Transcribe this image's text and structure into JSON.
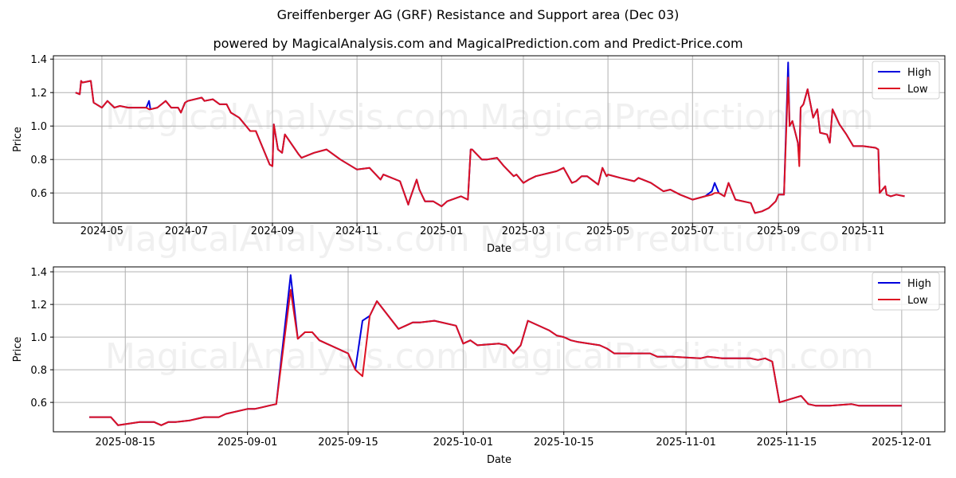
{
  "header": {
    "title": "Greiffenberger AG (GRF) Resistance and Support area (Dec 03)",
    "subtitle": "powered by MagicalAnalysis.com and MagicalPrediction.com and Predict-Price.com"
  },
  "watermarks": [
    "MagicalAnalysis.com",
    "MagicalPrediction.com"
  ],
  "colors": {
    "high": "#0000dd",
    "low": "#dd1122",
    "grid": "#b0b0b0"
  },
  "chart_data": [
    {
      "type": "line",
      "title": "Full history",
      "xlabel": "Date",
      "ylabel": "Price",
      "ylim": [
        0.42,
        1.42
      ],
      "yticks": [
        "0.6",
        "0.8",
        "1.0",
        "1.2",
        "1.4"
      ],
      "xticks": [
        "2024-05",
        "2024-07",
        "2024-09",
        "2024-11",
        "2025-01",
        "2025-03",
        "2025-05",
        "2025-07",
        "2025-09",
        "2025-11"
      ],
      "grid": true,
      "legend": {
        "position": "upper right",
        "entries": [
          "High",
          "Low"
        ]
      },
      "x": [
        "2024-04-12",
        "2024-04-15",
        "2024-04-16",
        "2024-04-17",
        "2024-04-23",
        "2024-04-25",
        "2024-05-01",
        "2024-05-05",
        "2024-05-10",
        "2024-05-14",
        "2024-05-20",
        "2024-06-02",
        "2024-06-04",
        "2024-06-05",
        "2024-06-10",
        "2024-06-16",
        "2024-06-20",
        "2024-06-25",
        "2024-06-27",
        "2024-06-30",
        "2024-07-02",
        "2024-07-12",
        "2024-07-14",
        "2024-07-20",
        "2024-07-25",
        "2024-07-30",
        "2024-08-02",
        "2024-08-08",
        "2024-08-12",
        "2024-08-16",
        "2024-08-20",
        "2024-08-30",
        "2024-09-01",
        "2024-09-02",
        "2024-09-05",
        "2024-09-08",
        "2024-09-10",
        "2024-09-20",
        "2024-09-22",
        "2024-10-01",
        "2024-10-10",
        "2024-10-20",
        "2024-11-01",
        "2024-11-10",
        "2024-11-18",
        "2024-11-20",
        "2024-12-02",
        "2024-12-08",
        "2024-12-09",
        "2024-12-14",
        "2024-12-16",
        "2024-12-20",
        "2024-12-26",
        "2025-01-01",
        "2025-01-05",
        "2025-01-15",
        "2025-01-20",
        "2025-01-22",
        "2025-01-23",
        "2025-01-30",
        "2025-02-03",
        "2025-02-10",
        "2025-02-15",
        "2025-02-22",
        "2025-02-24",
        "2025-03-01",
        "2025-03-05",
        "2025-03-10",
        "2025-03-25",
        "2025-03-30",
        "2025-04-05",
        "2025-04-08",
        "2025-04-12",
        "2025-04-16",
        "2025-04-24",
        "2025-04-27",
        "2025-04-30",
        "2025-05-01",
        "2025-05-10",
        "2025-05-20",
        "2025-05-23",
        "2025-06-01",
        "2025-06-10",
        "2025-06-15",
        "2025-06-22",
        "2025-07-01",
        "2025-07-10",
        "2025-07-15",
        "2025-07-17",
        "2025-07-20",
        "2025-07-24",
        "2025-07-27",
        "2025-08-01",
        "2025-08-12",
        "2025-08-14",
        "2025-08-15",
        "2025-08-20",
        "2025-08-25",
        "2025-08-30",
        "2025-09-01",
        "2025-09-05",
        "2025-09-08",
        "2025-09-09",
        "2025-09-11",
        "2025-09-15",
        "2025-09-16",
        "2025-09-17",
        "2025-09-19",
        "2025-09-22",
        "2025-09-26",
        "2025-09-29",
        "2025-10-01",
        "2025-10-06",
        "2025-10-08",
        "2025-10-10",
        "2025-10-15",
        "2025-10-20",
        "2025-10-25",
        "2025-11-01",
        "2025-11-10",
        "2025-11-12",
        "2025-11-13",
        "2025-11-17",
        "2025-11-18",
        "2025-11-21",
        "2025-11-25",
        "2025-12-01"
      ],
      "series": [
        {
          "name": "High",
          "color": "#0000dd",
          "values": [
            1.2,
            1.19,
            1.27,
            1.26,
            1.27,
            1.14,
            1.11,
            1.15,
            1.11,
            1.12,
            1.11,
            1.11,
            1.15,
            1.1,
            1.11,
            1.15,
            1.11,
            1.11,
            1.08,
            1.14,
            1.15,
            1.17,
            1.15,
            1.16,
            1.13,
            1.13,
            1.08,
            1.05,
            1.01,
            0.97,
            0.97,
            0.77,
            0.76,
            1.01,
            0.86,
            0.84,
            0.95,
            0.83,
            0.81,
            0.84,
            0.86,
            0.8,
            0.74,
            0.75,
            0.68,
            0.71,
            0.67,
            0.53,
            0.56,
            0.68,
            0.62,
            0.55,
            0.55,
            0.52,
            0.55,
            0.58,
            0.56,
            0.86,
            0.86,
            0.8,
            0.8,
            0.81,
            0.76,
            0.7,
            0.71,
            0.66,
            0.68,
            0.7,
            0.73,
            0.75,
            0.66,
            0.67,
            0.7,
            0.7,
            0.65,
            0.75,
            0.7,
            0.71,
            0.69,
            0.67,
            0.69,
            0.66,
            0.61,
            0.62,
            0.59,
            0.56,
            0.58,
            0.61,
            0.66,
            0.6,
            0.58,
            0.66,
            0.56,
            0.54,
            0.5,
            0.48,
            0.49,
            0.51,
            0.55,
            0.59,
            0.59,
            1.38,
            1.0,
            1.03,
            0.9,
            0.8,
            1.11,
            1.13,
            1.22,
            1.05,
            1.1,
            0.96,
            0.95,
            0.9,
            1.1,
            1.01,
            0.95,
            0.88,
            0.88,
            0.87,
            0.86,
            0.6,
            0.64,
            0.59,
            0.58,
            0.59,
            0.58
          ]
        },
        {
          "name": "Low",
          "color": "#dd1122",
          "values": [
            1.2,
            1.19,
            1.27,
            1.26,
            1.27,
            1.14,
            1.11,
            1.15,
            1.11,
            1.12,
            1.11,
            1.11,
            1.1,
            1.1,
            1.11,
            1.15,
            1.11,
            1.11,
            1.08,
            1.14,
            1.15,
            1.17,
            1.15,
            1.16,
            1.13,
            1.13,
            1.08,
            1.05,
            1.01,
            0.97,
            0.97,
            0.77,
            0.76,
            1.01,
            0.86,
            0.84,
            0.95,
            0.83,
            0.81,
            0.84,
            0.86,
            0.8,
            0.74,
            0.75,
            0.68,
            0.71,
            0.67,
            0.53,
            0.56,
            0.68,
            0.62,
            0.55,
            0.55,
            0.52,
            0.55,
            0.58,
            0.56,
            0.86,
            0.86,
            0.8,
            0.8,
            0.81,
            0.76,
            0.7,
            0.71,
            0.66,
            0.68,
            0.7,
            0.73,
            0.75,
            0.66,
            0.67,
            0.7,
            0.7,
            0.65,
            0.75,
            0.7,
            0.71,
            0.69,
            0.67,
            0.69,
            0.66,
            0.61,
            0.62,
            0.59,
            0.56,
            0.58,
            0.59,
            0.6,
            0.6,
            0.58,
            0.66,
            0.56,
            0.54,
            0.5,
            0.48,
            0.49,
            0.51,
            0.55,
            0.59,
            0.59,
            1.29,
            1.0,
            1.03,
            0.9,
            0.76,
            1.11,
            1.13,
            1.22,
            1.05,
            1.1,
            0.96,
            0.95,
            0.9,
            1.1,
            1.01,
            0.95,
            0.88,
            0.88,
            0.87,
            0.86,
            0.6,
            0.64,
            0.59,
            0.58,
            0.59,
            0.58
          ]
        }
      ]
    },
    {
      "type": "line",
      "title": "Recent detail",
      "xlabel": "Date",
      "ylabel": "Price",
      "ylim": [
        0.42,
        1.43
      ],
      "yticks": [
        "0.6",
        "0.8",
        "1.0",
        "1.2",
        "1.4"
      ],
      "xticks": [
        "2025-08-15",
        "2025-09-01",
        "2025-09-15",
        "2025-10-01",
        "2025-10-15",
        "2025-11-01",
        "2025-11-15",
        "2025-12-01"
      ],
      "grid": true,
      "legend": {
        "position": "upper right",
        "entries": [
          "High",
          "Low"
        ]
      },
      "x": [
        "2025-08-10",
        "2025-08-12",
        "2025-08-13",
        "2025-08-14",
        "2025-08-17",
        "2025-08-19",
        "2025-08-20",
        "2025-08-21",
        "2025-08-22",
        "2025-08-24",
        "2025-08-25",
        "2025-08-26",
        "2025-08-27",
        "2025-08-28",
        "2025-08-29",
        "2025-09-01",
        "2025-09-02",
        "2025-09-03",
        "2025-09-04",
        "2025-09-05",
        "2025-09-07",
        "2025-09-08",
        "2025-09-09",
        "2025-09-10",
        "2025-09-11",
        "2025-09-12",
        "2025-09-15",
        "2025-09-16",
        "2025-09-17",
        "2025-09-18",
        "2025-09-19",
        "2025-09-22",
        "2025-09-24",
        "2025-09-25",
        "2025-09-27",
        "2025-09-30",
        "2025-10-01",
        "2025-10-02",
        "2025-10-03",
        "2025-10-06",
        "2025-10-07",
        "2025-10-08",
        "2025-10-09",
        "2025-10-10",
        "2025-10-13",
        "2025-10-14",
        "2025-10-15",
        "2025-10-16",
        "2025-10-17",
        "2025-10-20",
        "2025-10-21",
        "2025-10-22",
        "2025-10-27",
        "2025-10-28",
        "2025-10-29",
        "2025-10-30",
        "2025-11-03",
        "2025-11-04",
        "2025-11-06",
        "2025-11-10",
        "2025-11-11",
        "2025-11-12",
        "2025-11-13",
        "2025-11-14",
        "2025-11-17",
        "2025-11-18",
        "2025-11-19",
        "2025-11-20",
        "2025-11-21",
        "2025-11-24",
        "2025-11-25",
        "2025-11-26",
        "2025-12-01"
      ],
      "series": [
        {
          "name": "High",
          "color": "#0000dd",
          "values": [
            0.51,
            0.51,
            0.51,
            0.46,
            0.48,
            0.48,
            0.46,
            0.48,
            0.48,
            0.49,
            0.5,
            0.51,
            0.51,
            0.51,
            0.53,
            0.56,
            0.56,
            0.57,
            0.58,
            0.59,
            1.38,
            0.99,
            1.03,
            1.03,
            0.98,
            0.96,
            0.9,
            0.8,
            1.1,
            1.13,
            1.22,
            1.05,
            1.09,
            1.09,
            1.1,
            1.07,
            0.96,
            0.98,
            0.95,
            0.96,
            0.95,
            0.9,
            0.95,
            1.1,
            1.04,
            1.01,
            1.0,
            0.98,
            0.97,
            0.95,
            0.93,
            0.9,
            0.9,
            0.88,
            0.88,
            0.88,
            0.87,
            0.88,
            0.87,
            0.87,
            0.86,
            0.87,
            0.85,
            0.6,
            0.64,
            0.59,
            0.58,
            0.58,
            0.58,
            0.59,
            0.58,
            0.58,
            0.58
          ]
        },
        {
          "name": "Low",
          "color": "#dd1122",
          "values": [
            0.51,
            0.51,
            0.51,
            0.46,
            0.48,
            0.48,
            0.46,
            0.48,
            0.48,
            0.49,
            0.5,
            0.51,
            0.51,
            0.51,
            0.53,
            0.56,
            0.56,
            0.57,
            0.58,
            0.59,
            1.29,
            0.99,
            1.03,
            1.03,
            0.98,
            0.96,
            0.9,
            0.8,
            0.76,
            1.13,
            1.22,
            1.05,
            1.09,
            1.09,
            1.1,
            1.07,
            0.96,
            0.98,
            0.95,
            0.96,
            0.95,
            0.9,
            0.95,
            1.1,
            1.04,
            1.01,
            1.0,
            0.98,
            0.97,
            0.95,
            0.93,
            0.9,
            0.9,
            0.88,
            0.88,
            0.88,
            0.87,
            0.88,
            0.87,
            0.87,
            0.86,
            0.87,
            0.85,
            0.6,
            0.64,
            0.59,
            0.58,
            0.58,
            0.58,
            0.59,
            0.58,
            0.58,
            0.58
          ]
        }
      ]
    }
  ]
}
